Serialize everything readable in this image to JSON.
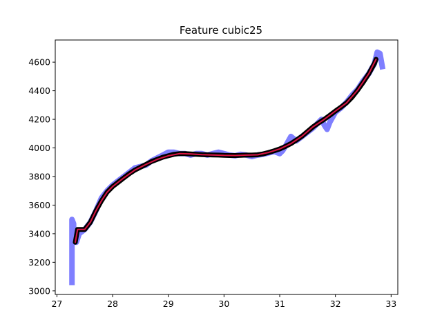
{
  "chart_data": {
    "type": "line",
    "title": "Feature cubic25",
    "xlabel": "",
    "ylabel": "",
    "xlim": [
      26.97,
      33.12
    ],
    "ylim": [
      2975,
      4755
    ],
    "xticks": [
      27,
      28,
      29,
      30,
      31,
      32,
      33
    ],
    "yticks": [
      3000,
      3200,
      3400,
      3600,
      3800,
      4000,
      4200,
      4400,
      4600
    ],
    "grid": false,
    "legend": "none",
    "series": [
      {
        "color": "#7f7fff",
        "style": "thick-band",
        "points": [
          [
            27.27,
            3040
          ],
          [
            27.27,
            3500
          ],
          [
            27.3,
            3470
          ],
          [
            27.3,
            3380
          ],
          [
            27.35,
            3340
          ],
          [
            27.4,
            3400
          ],
          [
            27.5,
            3430
          ],
          [
            27.6,
            3480
          ],
          [
            27.7,
            3560
          ],
          [
            27.8,
            3650
          ],
          [
            27.9,
            3700
          ],
          [
            28.0,
            3740
          ],
          [
            28.1,
            3770
          ],
          [
            28.2,
            3800
          ],
          [
            28.3,
            3830
          ],
          [
            28.4,
            3860
          ],
          [
            28.5,
            3870
          ],
          [
            28.6,
            3880
          ],
          [
            28.7,
            3910
          ],
          [
            28.8,
            3930
          ],
          [
            28.9,
            3950
          ],
          [
            29.0,
            3970
          ],
          [
            29.1,
            3970
          ],
          [
            29.2,
            3960
          ],
          [
            29.3,
            3960
          ],
          [
            29.4,
            3950
          ],
          [
            29.5,
            3960
          ],
          [
            29.6,
            3960
          ],
          [
            29.7,
            3950
          ],
          [
            29.8,
            3960
          ],
          [
            29.9,
            3970
          ],
          [
            30.0,
            3960
          ],
          [
            30.1,
            3950
          ],
          [
            30.2,
            3945
          ],
          [
            30.3,
            3955
          ],
          [
            30.4,
            3950
          ],
          [
            30.5,
            3940
          ],
          [
            30.6,
            3950
          ],
          [
            30.7,
            3955
          ],
          [
            30.8,
            3965
          ],
          [
            30.9,
            3975
          ],
          [
            31.0,
            3960
          ],
          [
            31.05,
            3980
          ],
          [
            31.1,
            4010
          ],
          [
            31.2,
            4080
          ],
          [
            31.3,
            4050
          ],
          [
            31.4,
            4080
          ],
          [
            31.5,
            4110
          ],
          [
            31.6,
            4140
          ],
          [
            31.7,
            4180
          ],
          [
            31.75,
            4200
          ],
          [
            31.8,
            4160
          ],
          [
            31.85,
            4130
          ],
          [
            31.9,
            4180
          ],
          [
            32.0,
            4250
          ],
          [
            32.1,
            4280
          ],
          [
            32.2,
            4320
          ],
          [
            32.3,
            4370
          ],
          [
            32.4,
            4410
          ],
          [
            32.5,
            4470
          ],
          [
            32.6,
            4520
          ],
          [
            32.7,
            4590
          ],
          [
            32.75,
            4670
          ],
          [
            32.8,
            4660
          ],
          [
            32.85,
            4550
          ]
        ]
      },
      {
        "color": "#000000",
        "style": "thick-line",
        "points": [
          [
            27.33,
            3340
          ],
          [
            27.37,
            3430
          ],
          [
            27.5,
            3430
          ],
          [
            27.6,
            3480
          ],
          [
            27.7,
            3560
          ],
          [
            27.8,
            3630
          ],
          [
            27.9,
            3690
          ],
          [
            28.0,
            3730
          ],
          [
            28.1,
            3760
          ],
          [
            28.2,
            3790
          ],
          [
            28.3,
            3820
          ],
          [
            28.4,
            3845
          ],
          [
            28.5,
            3865
          ],
          [
            28.6,
            3885
          ],
          [
            28.7,
            3905
          ],
          [
            28.8,
            3920
          ],
          [
            28.9,
            3935
          ],
          [
            29.0,
            3945
          ],
          [
            29.1,
            3955
          ],
          [
            29.2,
            3960
          ],
          [
            29.3,
            3960
          ],
          [
            29.4,
            3958
          ],
          [
            29.5,
            3955
          ],
          [
            29.6,
            3953
          ],
          [
            29.7,
            3952
          ],
          [
            29.8,
            3951
          ],
          [
            29.9,
            3950
          ],
          [
            30.0,
            3948
          ],
          [
            30.1,
            3947
          ],
          [
            30.2,
            3947
          ],
          [
            30.3,
            3948
          ],
          [
            30.4,
            3950
          ],
          [
            30.5,
            3950
          ],
          [
            30.6,
            3952
          ],
          [
            30.7,
            3958
          ],
          [
            30.8,
            3968
          ],
          [
            30.9,
            3980
          ],
          [
            31.0,
            3993
          ],
          [
            31.1,
            4010
          ],
          [
            31.2,
            4030
          ],
          [
            31.3,
            4055
          ],
          [
            31.4,
            4082
          ],
          [
            31.5,
            4115
          ],
          [
            31.6,
            4148
          ],
          [
            31.7,
            4175
          ],
          [
            31.8,
            4200
          ],
          [
            31.9,
            4228
          ],
          [
            32.0,
            4258
          ],
          [
            32.1,
            4285
          ],
          [
            32.2,
            4315
          ],
          [
            32.3,
            4355
          ],
          [
            32.4,
            4405
          ],
          [
            32.5,
            4460
          ],
          [
            32.6,
            4520
          ],
          [
            32.7,
            4590
          ],
          [
            32.73,
            4620
          ]
        ]
      },
      {
        "color": "#00008b",
        "style": "line",
        "points": [
          [
            27.33,
            3340
          ],
          [
            27.37,
            3430
          ],
          [
            27.5,
            3430
          ],
          [
            27.6,
            3480
          ],
          [
            27.7,
            3560
          ],
          [
            27.8,
            3630
          ],
          [
            27.9,
            3690
          ],
          [
            28.0,
            3730
          ],
          [
            28.2,
            3790
          ],
          [
            28.4,
            3845
          ],
          [
            28.6,
            3885
          ],
          [
            28.8,
            3920
          ],
          [
            29.0,
            3945
          ],
          [
            29.2,
            3960
          ],
          [
            29.4,
            3958
          ],
          [
            29.6,
            3953
          ],
          [
            29.8,
            3951
          ],
          [
            30.0,
            3948
          ],
          [
            30.2,
            3947
          ],
          [
            30.4,
            3950
          ],
          [
            30.6,
            3952
          ],
          [
            30.8,
            3968
          ],
          [
            31.0,
            3993
          ],
          [
            31.2,
            4030
          ],
          [
            31.4,
            4082
          ],
          [
            31.6,
            4148
          ],
          [
            31.8,
            4200
          ],
          [
            32.0,
            4258
          ],
          [
            32.2,
            4315
          ],
          [
            32.4,
            4405
          ],
          [
            32.6,
            4520
          ],
          [
            32.73,
            4620
          ]
        ]
      },
      {
        "color": "#dc143c",
        "style": "line",
        "points": [
          [
            27.33,
            3340
          ],
          [
            27.37,
            3430
          ],
          [
            27.5,
            3430
          ],
          [
            27.6,
            3480
          ],
          [
            27.7,
            3560
          ],
          [
            27.8,
            3630
          ],
          [
            27.9,
            3690
          ],
          [
            28.0,
            3730
          ],
          [
            28.2,
            3790
          ],
          [
            28.4,
            3845
          ],
          [
            28.6,
            3885
          ],
          [
            28.8,
            3920
          ],
          [
            29.0,
            3945
          ],
          [
            29.2,
            3960
          ],
          [
            29.4,
            3958
          ],
          [
            29.6,
            3953
          ],
          [
            29.8,
            3951
          ],
          [
            30.0,
            3948
          ],
          [
            30.2,
            3947
          ],
          [
            30.4,
            3950
          ],
          [
            30.6,
            3952
          ],
          [
            30.8,
            3968
          ],
          [
            31.0,
            3993
          ],
          [
            31.2,
            4030
          ],
          [
            31.4,
            4082
          ],
          [
            31.6,
            4148
          ],
          [
            31.8,
            4200
          ],
          [
            32.0,
            4258
          ],
          [
            32.2,
            4315
          ],
          [
            32.4,
            4405
          ],
          [
            32.6,
            4520
          ],
          [
            32.73,
            4620
          ]
        ]
      }
    ]
  }
}
